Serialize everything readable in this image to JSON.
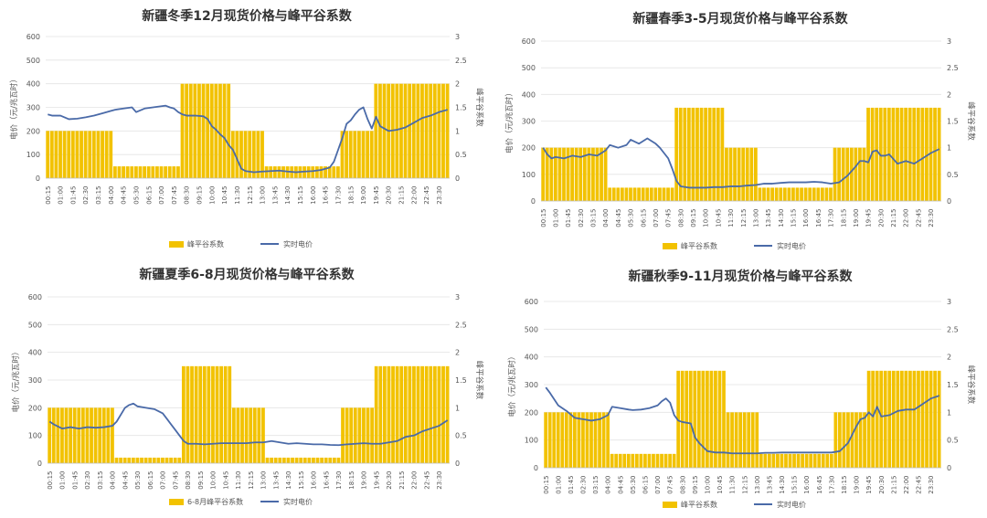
{
  "colors": {
    "bar": "#f2c200",
    "bar_edge": "#fff6c8",
    "line": "#4a6aa8",
    "grid": "#e3e3e3"
  },
  "chart_data": [
    {
      "type": "bar+line",
      "title": "新疆冬季12月现货价格与峰平谷系数",
      "ylabel": "电价（元/兆瓦时）",
      "y2label": "峰平谷系数",
      "ylim": [
        0,
        600
      ],
      "y2lim": [
        0,
        3
      ],
      "yticks": [
        0,
        100,
        200,
        300,
        400,
        500,
        600
      ],
      "y2ticks": [
        "0",
        "0.5",
        "1",
        "1.5",
        "2",
        "2.5",
        "3"
      ],
      "xticks": [
        "00:15",
        "01:00",
        "01:45",
        "02:30",
        "03:15",
        "04:00",
        "04:45",
        "05:30",
        "06:15",
        "07:00",
        "07:45",
        "08:30",
        "09:15",
        "10:00",
        "10:45",
        "11:30",
        "12:15",
        "13:00",
        "13:45",
        "14:30",
        "15:15",
        "16:00",
        "16:45",
        "17:30",
        "18:15",
        "19:00",
        "19:45",
        "20:30",
        "21:15",
        "22:00",
        "22:45",
        "23:30"
      ],
      "legend": [
        "峰平谷系数",
        "实时电价"
      ],
      "legend_position": "bottom",
      "grid": true,
      "coefficient_segments": [
        {
          "from": "00:15",
          "to": "04:00",
          "value": 1
        },
        {
          "from": "04:15",
          "to": "08:00",
          "value": 0.25
        },
        {
          "from": "08:15",
          "to": "11:00",
          "value": 2
        },
        {
          "from": "11:15",
          "to": "13:00",
          "value": 1
        },
        {
          "from": "13:15",
          "to": "17:30",
          "value": 0.25
        },
        {
          "from": "17:45",
          "to": "19:30",
          "value": 1
        },
        {
          "from": "19:45",
          "to": "24:00",
          "value": 2
        }
      ],
      "price_line": {
        "hours": [
          0.25,
          0.5,
          1,
          1.5,
          2,
          2.5,
          3,
          3.5,
          4,
          4.25,
          4.75,
          5.25,
          5.5,
          6,
          6.5,
          7,
          7.25,
          7.5,
          7.75,
          8,
          8.25,
          8.5,
          9,
          9.5,
          9.75,
          10,
          10.25,
          10.5,
          10.75,
          11,
          11.25,
          11.5,
          11.75,
          12,
          12.5,
          13,
          13.5,
          14,
          14.5,
          15,
          15.5,
          16,
          16.5,
          17,
          17.25,
          17.5,
          17.75,
          18,
          18.25,
          18.5,
          18.75,
          19,
          19.25,
          19.5,
          19.75,
          20,
          20.5,
          21,
          21.5,
          22,
          22.5,
          23,
          23.5,
          24
        ],
        "values": [
          270,
          265,
          265,
          250,
          252,
          258,
          265,
          275,
          285,
          290,
          295,
          300,
          280,
          295,
          300,
          305,
          307,
          300,
          295,
          280,
          270,
          265,
          265,
          262,
          250,
          220,
          205,
          185,
          170,
          140,
          120,
          80,
          40,
          30,
          25,
          28,
          30,
          32,
          28,
          25,
          28,
          30,
          35,
          45,
          70,
          120,
          170,
          230,
          245,
          270,
          290,
          300,
          250,
          210,
          260,
          220,
          200,
          205,
          215,
          235,
          255,
          265,
          280,
          290
        ]
      }
    },
    {
      "type": "bar+line",
      "title": "新疆春季3-5月现货价格与峰平谷系数",
      "ylabel": "电价（元/兆瓦时）",
      "y2label": "峰平谷系数",
      "ylim": [
        0,
        600
      ],
      "y2lim": [
        0,
        3
      ],
      "yticks": [
        0,
        100,
        200,
        300,
        400,
        500,
        600
      ],
      "y2ticks": [
        "0",
        "0.5",
        "1",
        "1.5",
        "2",
        "2.5",
        "3"
      ],
      "xticks": [
        "00:15",
        "01:00",
        "01:45",
        "02:30",
        "03:15",
        "04:00",
        "04:45",
        "05:30",
        "06:15",
        "07:00",
        "07:45",
        "08:30",
        "09:15",
        "10:00",
        "10:45",
        "11:30",
        "12:15",
        "13:00",
        "13:45",
        "14:30",
        "15:15",
        "16:00",
        "16:45",
        "17:30",
        "18:15",
        "19:00",
        "19:45",
        "20:30",
        "21:15",
        "22:00",
        "22:45",
        "23:30"
      ],
      "legend": [
        "峰平谷系数",
        "实时电价"
      ],
      "legend_position": "bottom",
      "grid": true,
      "coefficient_segments": [
        {
          "from": "00:15",
          "to": "04:00",
          "value": 1
        },
        {
          "from": "04:15",
          "to": "08:00",
          "value": 0.25
        },
        {
          "from": "08:15",
          "to": "11:00",
          "value": 1.75
        },
        {
          "from": "11:15",
          "to": "13:00",
          "value": 1
        },
        {
          "from": "13:15",
          "to": "17:30",
          "value": 0.25
        },
        {
          "from": "17:45",
          "to": "19:30",
          "value": 1
        },
        {
          "from": "19:45",
          "to": "24:00",
          "value": 1.75
        }
      ],
      "price_line": {
        "hours": [
          0.25,
          0.5,
          0.75,
          1,
          1.5,
          2,
          2.5,
          3,
          3.5,
          4,
          4.25,
          4.75,
          5.25,
          5.5,
          6,
          6.25,
          6.5,
          7,
          7.25,
          7.5,
          7.75,
          8,
          8.25,
          8.5,
          9,
          9.5,
          10,
          10.5,
          11,
          11.5,
          12,
          12.5,
          13,
          13.5,
          14,
          14.5,
          15,
          15.5,
          16,
          16.5,
          17,
          17.5,
          18,
          18.5,
          19,
          19.25,
          19.5,
          19.75,
          20,
          20.25,
          20.5,
          20.75,
          21,
          21.5,
          22,
          22.5,
          23,
          23.5,
          24
        ],
        "values": [
          200,
          175,
          160,
          165,
          160,
          170,
          165,
          175,
          170,
          190,
          210,
          200,
          210,
          230,
          215,
          225,
          235,
          215,
          200,
          180,
          160,
          120,
          75,
          55,
          50,
          50,
          50,
          52,
          52,
          55,
          55,
          58,
          60,
          65,
          65,
          68,
          70,
          70,
          70,
          72,
          70,
          65,
          70,
          95,
          130,
          150,
          150,
          145,
          185,
          190,
          170,
          170,
          175,
          140,
          150,
          140,
          160,
          180,
          195
        ]
      }
    },
    {
      "type": "bar+line",
      "title": "新疆夏季6-8月现货价格与峰平谷系数",
      "ylabel": "电价（元/兆瓦时）",
      "y2label": "峰平谷系数",
      "ylim": [
        0,
        600
      ],
      "y2lim": [
        0,
        3
      ],
      "yticks": [
        0,
        100,
        200,
        300,
        400,
        500,
        600
      ],
      "y2ticks": [
        "0",
        "0.5",
        "1",
        "1.5",
        "2",
        "2.5",
        "3"
      ],
      "xticks": [
        "00:15",
        "01:00",
        "01:45",
        "02:30",
        "03:15",
        "04:00",
        "04:45",
        "05:30",
        "06:15",
        "07:00",
        "07:45",
        "08:30",
        "09:15",
        "10:00",
        "10:45",
        "11:30",
        "12:15",
        "13:00",
        "13:45",
        "14:30",
        "15:15",
        "16:00",
        "16:45",
        "17:30",
        "18:15",
        "19:00",
        "19:45",
        "20:30",
        "21:15",
        "22:00",
        "22:45",
        "23:30"
      ],
      "legend": [
        "6-8月峰平谷系数",
        "实时电价"
      ],
      "legend_position": "bottom",
      "grid": true,
      "coefficient_segments": [
        {
          "from": "00:15",
          "to": "04:00",
          "value": 1
        },
        {
          "from": "04:15",
          "to": "08:00",
          "value": 0.1
        },
        {
          "from": "08:15",
          "to": "11:00",
          "value": 1.75
        },
        {
          "from": "11:15",
          "to": "13:00",
          "value": 1
        },
        {
          "from": "13:15",
          "to": "17:30",
          "value": 0.1
        },
        {
          "from": "17:45",
          "to": "19:30",
          "value": 1
        },
        {
          "from": "19:45",
          "to": "24:00",
          "value": 1.75
        }
      ],
      "price_line": {
        "hours": [
          0.25,
          0.5,
          1,
          1.5,
          2,
          2.5,
          3,
          3.5,
          4,
          4.25,
          4.75,
          5,
          5.25,
          5.5,
          6,
          6.5,
          7,
          7.25,
          7.5,
          7.75,
          8,
          8.25,
          8.5,
          9,
          9.5,
          10,
          10.5,
          11,
          11.5,
          12,
          12.5,
          13,
          13.5,
          14,
          14.5,
          15,
          15.5,
          16,
          16.5,
          17,
          17.5,
          18,
          18.5,
          19,
          19.5,
          20,
          20.5,
          21,
          21.5,
          22,
          22.5,
          23,
          23.5,
          24
        ],
        "values": [
          150,
          140,
          125,
          130,
          125,
          130,
          128,
          130,
          135,
          150,
          200,
          210,
          215,
          205,
          200,
          195,
          180,
          160,
          140,
          120,
          100,
          80,
          70,
          70,
          68,
          70,
          72,
          72,
          72,
          72,
          75,
          75,
          80,
          75,
          70,
          72,
          70,
          68,
          68,
          66,
          65,
          68,
          70,
          72,
          70,
          70,
          75,
          80,
          95,
          100,
          115,
          125,
          135,
          155
        ]
      }
    },
    {
      "type": "bar+line",
      "title": "新疆秋季9-11月现货价格与峰平谷系数",
      "ylabel": "电价（元/兆瓦时）",
      "y2label": "峰平谷系数",
      "ylim": [
        0,
        600
      ],
      "y2lim": [
        0,
        3
      ],
      "yticks": [
        0,
        100,
        200,
        300,
        400,
        500,
        600
      ],
      "y2ticks": [
        "0",
        "0.5",
        "1",
        "1.5",
        "2",
        "2.5",
        "3"
      ],
      "xticks": [
        "00:15",
        "01:00",
        "01:45",
        "02:30",
        "03:15",
        "04:00",
        "04:45",
        "05:30",
        "06:15",
        "07:00",
        "07:45",
        "08:30",
        "09:15",
        "10:00",
        "10:45",
        "11:30",
        "12:15",
        "13:00",
        "13:45",
        "14:30",
        "15:15",
        "16:00",
        "16:45",
        "17:30",
        "18:15",
        "19:00",
        "19:45",
        "20:30",
        "21:15",
        "22:00",
        "22:45",
        "23:30"
      ],
      "legend": [
        "峰平谷系数",
        "实时电价"
      ],
      "legend_position": "bottom",
      "grid": true,
      "coefficient_segments": [
        {
          "from": "00:15",
          "to": "04:00",
          "value": 1
        },
        {
          "from": "04:15",
          "to": "08:00",
          "value": 0.25
        },
        {
          "from": "08:15",
          "to": "11:00",
          "value": 1.75
        },
        {
          "from": "11:15",
          "to": "13:00",
          "value": 1
        },
        {
          "from": "13:15",
          "to": "17:30",
          "value": 0.25
        },
        {
          "from": "17:45",
          "to": "19:30",
          "value": 1
        },
        {
          "from": "19:45",
          "to": "24:00",
          "value": 1.75
        }
      ],
      "price_line": {
        "hours": [
          0.25,
          0.5,
          1,
          1.5,
          2,
          2.5,
          3,
          3.5,
          4,
          4.25,
          4.75,
          5.25,
          5.5,
          6,
          6.5,
          7,
          7.25,
          7.5,
          7.75,
          8,
          8.25,
          8.5,
          9,
          9.25,
          9.5,
          10,
          10.5,
          11,
          11.5,
          12,
          12.5,
          13,
          13.5,
          14,
          14.5,
          15,
          15.5,
          16,
          16.5,
          17,
          17.5,
          18,
          18.5,
          19,
          19.25,
          19.5,
          19.75,
          20,
          20.25,
          20.5,
          21,
          21.5,
          22,
          22.5,
          23,
          23.5,
          24
        ],
        "values": [
          290,
          270,
          225,
          205,
          180,
          175,
          170,
          175,
          190,
          220,
          215,
          210,
          208,
          210,
          215,
          225,
          240,
          250,
          235,
          190,
          170,
          165,
          160,
          110,
          90,
          60,
          55,
          55,
          52,
          52,
          52,
          52,
          54,
          54,
          55,
          55,
          55,
          55,
          55,
          55,
          55,
          60,
          90,
          150,
          175,
          180,
          200,
          185,
          220,
          185,
          190,
          205,
          210,
          210,
          230,
          250,
          260
        ]
      }
    }
  ]
}
